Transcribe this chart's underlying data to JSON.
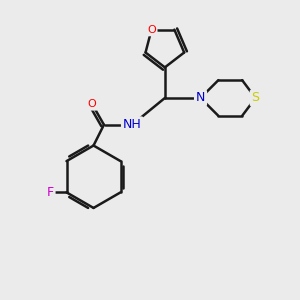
{
  "bg_color": "#ebebeb",
  "bond_color": "#1a1a1a",
  "bond_width": 1.8,
  "atom_colors": {
    "O": "#ff0000",
    "N": "#0000cc",
    "S": "#cccc00",
    "F": "#cc00cc",
    "C": "#1a1a1a"
  },
  "font_size": 9,
  "fig_size": [
    3.0,
    3.0
  ],
  "dpi": 100
}
